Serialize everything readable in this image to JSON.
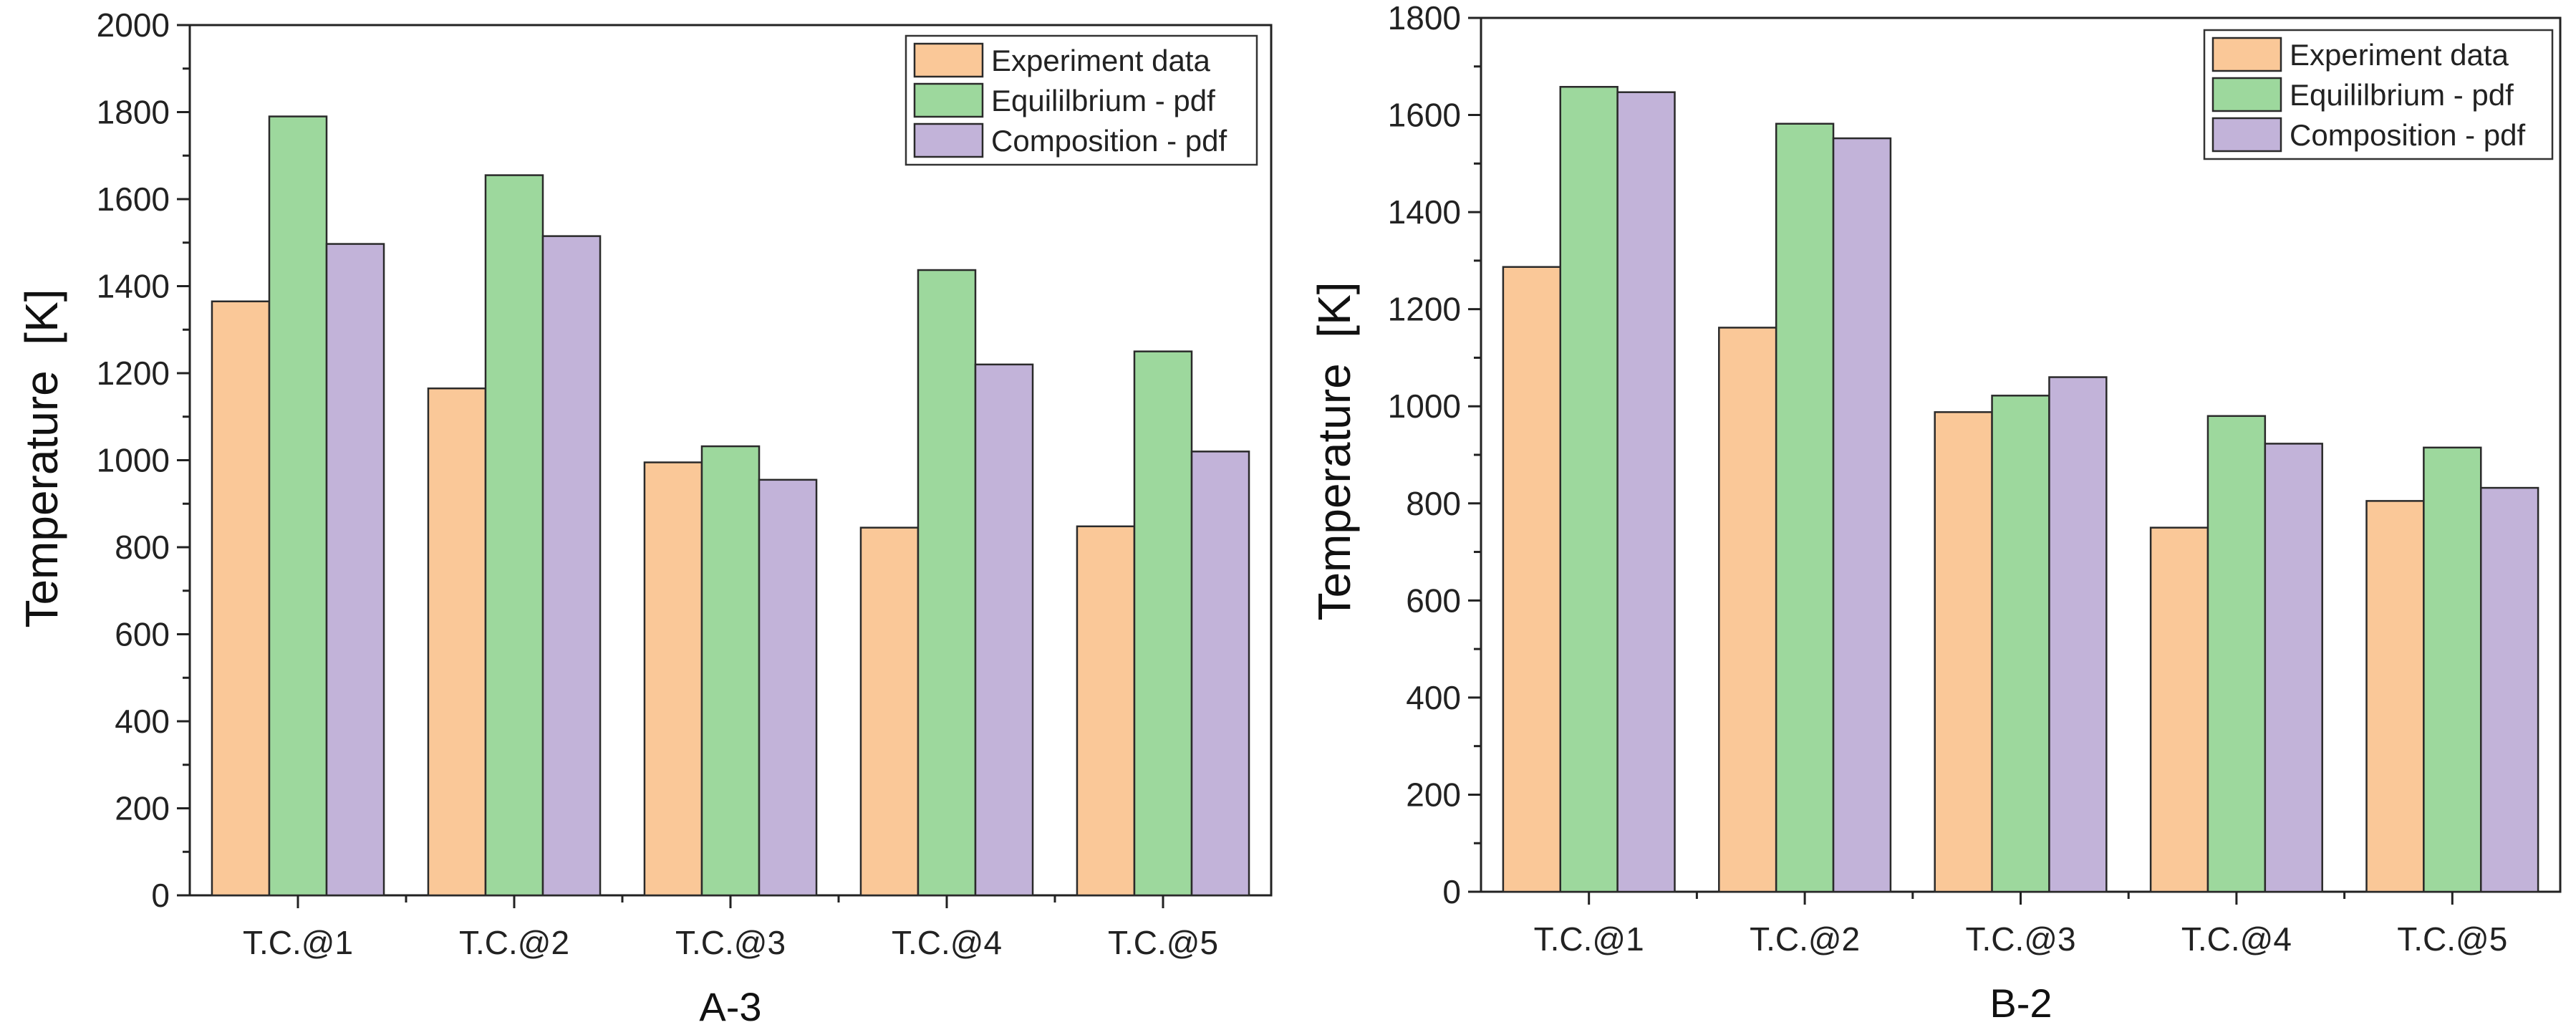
{
  "chart_data": [
    {
      "type": "bar",
      "title": "",
      "xlabel": "A-3",
      "ylabel": "Temperature  [K]",
      "ylim": [
        0,
        2000
      ],
      "yticks": [
        0,
        200,
        400,
        600,
        800,
        1000,
        1200,
        1400,
        1600,
        1800,
        2000
      ],
      "categories": [
        "T.C.@1",
        "T.C.@2",
        "T.C.@3",
        "T.C.@4",
        "T.C.@5"
      ],
      "series": [
        {
          "name": "Experiment data",
          "color": "#FAC898",
          "values": [
            1365,
            1165,
            995,
            845,
            848
          ]
        },
        {
          "name": "Equililbrium - pdf",
          "color": "#9DD89D",
          "values": [
            1790,
            1655,
            1032,
            1437,
            1250
          ]
        },
        {
          "name": "Composition - pdf",
          "color": "#C2B3D9",
          "values": [
            1497,
            1515,
            955,
            1220,
            1020
          ]
        }
      ],
      "legend": "top-right"
    },
    {
      "type": "bar",
      "title": "",
      "xlabel": "B-2",
      "ylabel": "Temperature  [K]",
      "ylim": [
        0,
        1800
      ],
      "yticks": [
        0,
        200,
        400,
        600,
        800,
        1000,
        1200,
        1400,
        1600,
        1800
      ],
      "categories": [
        "T.C.@1",
        "T.C.@2",
        "T.C.@3",
        "T.C.@4",
        "T.C.@5"
      ],
      "series": [
        {
          "name": "Experiment data",
          "color": "#FAC898",
          "values": [
            1287,
            1162,
            988,
            750,
            805
          ]
        },
        {
          "name": "Equililbrium - pdf",
          "color": "#9DD89D",
          "values": [
            1658,
            1582,
            1022,
            980,
            915
          ]
        },
        {
          "name": "Composition - pdf",
          "color": "#C2B3D9",
          "values": [
            1647,
            1552,
            1060,
            923,
            832
          ]
        }
      ],
      "legend": "top-right"
    }
  ]
}
